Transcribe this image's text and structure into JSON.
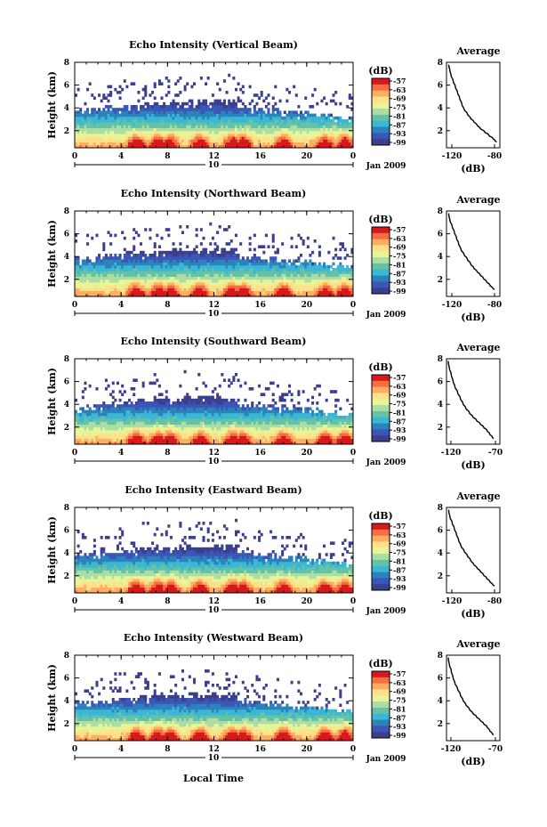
{
  "figure": {
    "xlabel": "Local Time",
    "date_label": "Jan 2009",
    "day_label": "10"
  },
  "colorbar": {
    "unit": "(dB)",
    "ticks": [
      "-57",
      "-63",
      "-69",
      "-75",
      "-81",
      "-87",
      "-93",
      "-99"
    ],
    "colors": [
      "#d7191c",
      "#f46d43",
      "#fdae61",
      "#fee08b",
      "#e6f598",
      "#abdda4",
      "#66c2a5",
      "#3bb7d6",
      "#2b83ba",
      "#3a57b8",
      "#3b3f8c"
    ]
  },
  "chart_data": [
    {
      "type": "heatmap",
      "title": "Echo Intensity (Vertical Beam)",
      "ylabel": "Height (km)",
      "xticks": [
        "0",
        "4",
        "8",
        "12",
        "16",
        "20",
        "0"
      ],
      "yticks": [
        "2",
        "4",
        "6",
        "8"
      ],
      "xlim": [
        0,
        24
      ],
      "ylim": [
        0.5,
        8
      ],
      "profile": {
        "title": "Average",
        "xlabel": "(dB)",
        "xticks": [
          "-120",
          "-80"
        ],
        "yticks": [
          "2",
          "4",
          "6",
          "8"
        ],
        "xlim": [
          -125,
          -75
        ],
        "ylim": [
          0.5,
          8
        ],
        "x": [
          -123,
          -122,
          -121,
          -119,
          -117,
          -115,
          -113,
          -111,
          -109,
          -106,
          -103,
          -100,
          -97,
          -94,
          -90,
          -86,
          -82,
          -80,
          -78
        ],
        "y": [
          7.8,
          7.4,
          7.0,
          6.5,
          6.0,
          5.5,
          5.0,
          4.5,
          4.0,
          3.6,
          3.2,
          2.9,
          2.6,
          2.3,
          2.0,
          1.7,
          1.4,
          1.2,
          1.0
        ]
      }
    },
    {
      "type": "heatmap",
      "title": "Echo Intensity (Northward Beam)",
      "ylabel": "Height (km)",
      "xticks": [
        "0",
        "4",
        "8",
        "12",
        "16",
        "20",
        "0"
      ],
      "yticks": [
        "2",
        "4",
        "6",
        "8"
      ],
      "xlim": [
        0,
        24
      ],
      "ylim": [
        0.5,
        8
      ],
      "profile": {
        "title": "Average",
        "xlabel": "(dB)",
        "xticks": [
          "-120",
          "-80"
        ],
        "yticks": [
          "2",
          "4",
          "6",
          "8"
        ],
        "xlim": [
          -125,
          -75
        ],
        "ylim": [
          0.5,
          8
        ],
        "x": [
          -123,
          -122,
          -120,
          -118,
          -116,
          -114,
          -112,
          -109,
          -106,
          -103,
          -100,
          -97,
          -94,
          -91,
          -88,
          -85,
          -82,
          -80
        ],
        "y": [
          7.8,
          7.3,
          6.8,
          6.3,
          5.8,
          5.3,
          4.8,
          4.3,
          3.9,
          3.5,
          3.1,
          2.8,
          2.5,
          2.2,
          1.9,
          1.6,
          1.3,
          1.1
        ]
      }
    },
    {
      "type": "heatmap",
      "title": "Echo Intensity (Southward Beam)",
      "ylabel": "Height (km)",
      "xticks": [
        "0",
        "4",
        "8",
        "12",
        "16",
        "20",
        "0"
      ],
      "yticks": [
        "2",
        "4",
        "6",
        "8"
      ],
      "xlim": [
        0,
        24
      ],
      "ylim": [
        0.5,
        8
      ],
      "profile": {
        "title": "Average",
        "xlabel": "(dB)",
        "xticks": [
          "-120",
          "-70"
        ],
        "yticks": [
          "2",
          "4",
          "6",
          "8"
        ],
        "xlim": [
          -125,
          -65
        ],
        "ylim": [
          0.5,
          8
        ],
        "x": [
          -123,
          -122,
          -120,
          -118,
          -116,
          -113,
          -110,
          -107,
          -104,
          -100,
          -96,
          -92,
          -88,
          -84,
          -80,
          -77,
          -74,
          -72
        ],
        "y": [
          7.8,
          7.3,
          6.8,
          6.2,
          5.7,
          5.2,
          4.7,
          4.2,
          3.8,
          3.4,
          3.0,
          2.7,
          2.4,
          2.1,
          1.8,
          1.5,
          1.2,
          1.0
        ]
      }
    },
    {
      "type": "heatmap",
      "title": "Echo Intensity (Eastward Beam)",
      "ylabel": "Height (km)",
      "xticks": [
        "0",
        "4",
        "8",
        "12",
        "16",
        "20",
        "0"
      ],
      "yticks": [
        "2",
        "4",
        "6",
        "8"
      ],
      "xlim": [
        0,
        24
      ],
      "ylim": [
        0.5,
        8
      ],
      "profile": {
        "title": "Average",
        "xlabel": "(dB)",
        "xticks": [
          "-120",
          "-80"
        ],
        "yticks": [
          "2",
          "4",
          "6",
          "8"
        ],
        "xlim": [
          -125,
          -75
        ],
        "ylim": [
          0.5,
          8
        ],
        "x": [
          -123,
          -122,
          -120,
          -118,
          -116,
          -114,
          -112,
          -109,
          -106,
          -103,
          -100,
          -97,
          -94,
          -91,
          -88,
          -85,
          -82,
          -80
        ],
        "y": [
          7.8,
          7.3,
          6.8,
          6.3,
          5.8,
          5.3,
          4.8,
          4.3,
          3.9,
          3.5,
          3.1,
          2.8,
          2.5,
          2.2,
          1.9,
          1.6,
          1.3,
          1.1
        ]
      }
    },
    {
      "type": "heatmap",
      "title": "Echo Intensity (Westward Beam)",
      "ylabel": "Height (km)",
      "xticks": [
        "0",
        "4",
        "8",
        "12",
        "16",
        "20",
        "0"
      ],
      "yticks": [
        "2",
        "4",
        "6",
        "8"
      ],
      "xlim": [
        0,
        24
      ],
      "ylim": [
        0.5,
        8
      ],
      "profile": {
        "title": "Average",
        "xlabel": "(dB)",
        "xticks": [
          "-120",
          "-70"
        ],
        "yticks": [
          "2",
          "4",
          "6",
          "8"
        ],
        "xlim": [
          -125,
          -65
        ],
        "ylim": [
          0.5,
          8
        ],
        "x": [
          -123,
          -122,
          -120,
          -118,
          -116,
          -113,
          -110,
          -107,
          -104,
          -100,
          -96,
          -92,
          -88,
          -84,
          -80,
          -77,
          -74,
          -72
        ],
        "y": [
          7.8,
          7.3,
          6.8,
          6.2,
          5.7,
          5.2,
          4.7,
          4.2,
          3.8,
          3.4,
          3.0,
          2.7,
          2.4,
          2.1,
          1.8,
          1.5,
          1.2,
          1.0
        ]
      }
    }
  ]
}
